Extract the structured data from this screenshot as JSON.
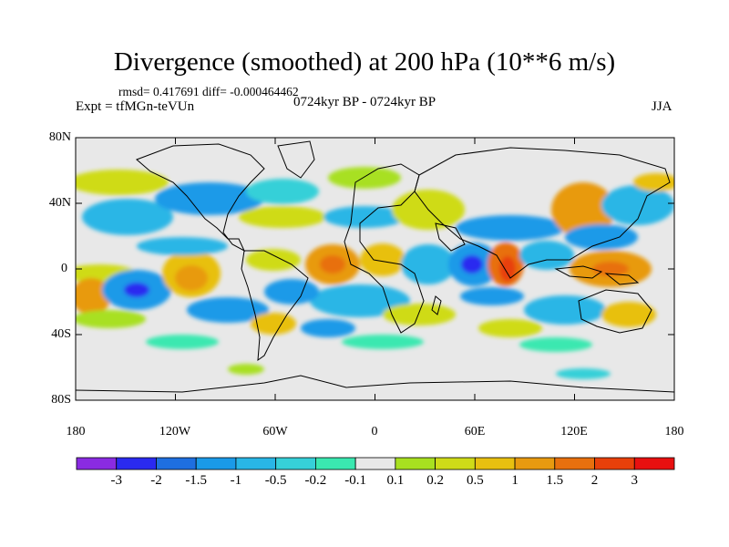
{
  "title": "Divergence (smoothed) at 200 hPa (10**6 m/s)",
  "stats": "rmsd= 0.417691 diff= -0.000464462",
  "experiment": "Expt = tfMGn-teVUn",
  "period": "0724kyr BP - 0724kyr BP",
  "season": "JJA",
  "lat_labels": [
    "80N",
    "40N",
    "0",
    "40S",
    "80S"
  ],
  "lon_labels": [
    "180",
    "120W",
    "60W",
    "0",
    "60E",
    "120E",
    "180"
  ],
  "colorbar": {
    "labels": [
      "-3",
      "-2",
      "-1.5",
      "-1",
      "-0.5",
      "-0.2",
      "-0.1",
      "0.1",
      "0.2",
      "0.5",
      "1",
      "1.5",
      "2",
      "3"
    ],
    "colors": [
      "#8a2be2",
      "#2a2af0",
      "#1e6fe0",
      "#1a9ae8",
      "#29b6e6",
      "#36d0d8",
      "#3ae8b0",
      "#e8e8e8",
      "#a8e020",
      "#cfdb18",
      "#e8c010",
      "#e89a10",
      "#e8700e",
      "#e8400a",
      "#e81010"
    ]
  }
}
